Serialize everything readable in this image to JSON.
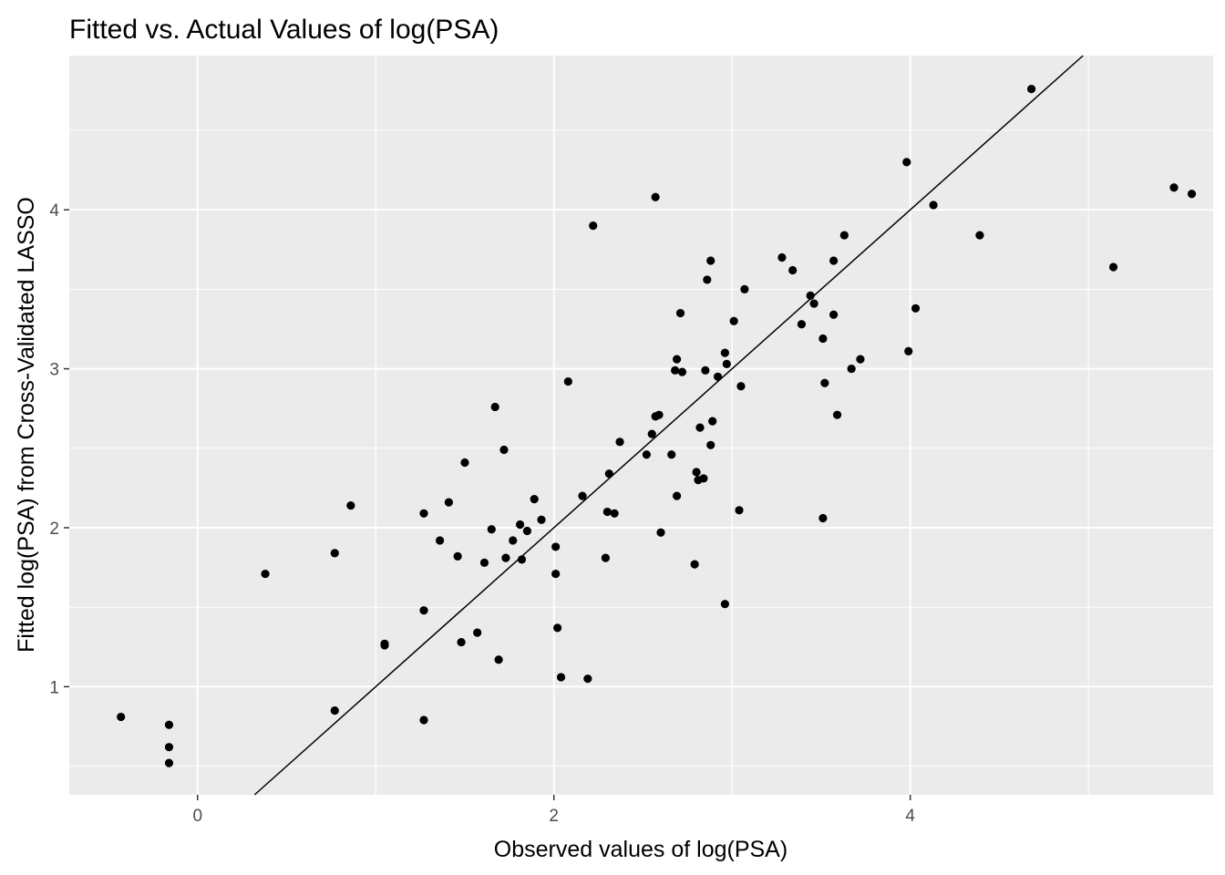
{
  "chart_data": {
    "type": "scatter",
    "title": "Fitted vs. Actual Values of log(PSA)",
    "xlabel": "Observed values of log(PSA)",
    "ylabel": "Fitted log(PSA) from Cross-Validated LASSO",
    "xlim": [
      -0.72,
      5.7
    ],
    "ylim": [
      0.32,
      4.97
    ],
    "x_ticks": [
      0,
      2,
      4
    ],
    "x_tick_labels": [
      "0",
      "2",
      "4"
    ],
    "y_ticks": [
      1,
      2,
      3,
      4
    ],
    "y_tick_labels": [
      "1",
      "2",
      "3",
      "4"
    ],
    "grid": true,
    "reference_line": {
      "type": "identity",
      "slope": 1,
      "intercept": 0
    },
    "colors": {
      "panel": "#ebebeb",
      "grid": "#ffffff",
      "points": "#000000",
      "line": "#000000",
      "tick_text": "#4d4d4d"
    },
    "points": [
      [
        -0.43,
        0.81
      ],
      [
        -0.16,
        0.76
      ],
      [
        -0.16,
        0.62
      ],
      [
        -0.16,
        0.52
      ],
      [
        0.38,
        1.71
      ],
      [
        0.77,
        1.84
      ],
      [
        0.77,
        0.85
      ],
      [
        0.86,
        2.14
      ],
      [
        1.05,
        1.27
      ],
      [
        1.05,
        1.26
      ],
      [
        1.27,
        2.09
      ],
      [
        1.27,
        1.48
      ],
      [
        1.27,
        0.79
      ],
      [
        1.36,
        1.92
      ],
      [
        1.41,
        2.16
      ],
      [
        1.46,
        1.82
      ],
      [
        1.48,
        1.28
      ],
      [
        1.5,
        2.41
      ],
      [
        1.57,
        1.34
      ],
      [
        1.61,
        1.78
      ],
      [
        1.65,
        1.99
      ],
      [
        1.67,
        2.76
      ],
      [
        1.69,
        1.17
      ],
      [
        1.72,
        2.49
      ],
      [
        1.73,
        1.81
      ],
      [
        1.77,
        1.92
      ],
      [
        1.81,
        2.02
      ],
      [
        1.82,
        1.8
      ],
      [
        1.85,
        1.98
      ],
      [
        1.89,
        2.18
      ],
      [
        1.93,
        2.05
      ],
      [
        2.01,
        1.88
      ],
      [
        2.01,
        1.71
      ],
      [
        2.02,
        1.37
      ],
      [
        2.04,
        1.06
      ],
      [
        2.08,
        2.92
      ],
      [
        2.16,
        2.2
      ],
      [
        2.19,
        1.05
      ],
      [
        2.22,
        3.9
      ],
      [
        2.29,
        1.81
      ],
      [
        2.3,
        2.1
      ],
      [
        2.31,
        2.34
      ],
      [
        2.34,
        2.09
      ],
      [
        2.37,
        2.54
      ],
      [
        2.52,
        2.46
      ],
      [
        2.55,
        2.59
      ],
      [
        2.57,
        2.7
      ],
      [
        2.57,
        4.08
      ],
      [
        2.59,
        2.71
      ],
      [
        2.6,
        1.97
      ],
      [
        2.66,
        2.46
      ],
      [
        2.68,
        2.99
      ],
      [
        2.69,
        3.06
      ],
      [
        2.69,
        2.2
      ],
      [
        2.71,
        3.35
      ],
      [
        2.72,
        2.98
      ],
      [
        2.79,
        1.77
      ],
      [
        2.8,
        2.35
      ],
      [
        2.81,
        2.3
      ],
      [
        2.82,
        2.63
      ],
      [
        2.84,
        2.31
      ],
      [
        2.85,
        2.99
      ],
      [
        2.86,
        3.56
      ],
      [
        2.88,
        3.68
      ],
      [
        2.88,
        2.52
      ],
      [
        2.89,
        2.67
      ],
      [
        2.92,
        2.95
      ],
      [
        2.96,
        3.1
      ],
      [
        2.96,
        1.52
      ],
      [
        2.97,
        3.03
      ],
      [
        3.01,
        3.3
      ],
      [
        3.04,
        2.11
      ],
      [
        3.05,
        2.89
      ],
      [
        3.07,
        3.5
      ],
      [
        3.28,
        3.7
      ],
      [
        3.34,
        3.62
      ],
      [
        3.39,
        3.28
      ],
      [
        3.44,
        3.46
      ],
      [
        3.46,
        3.41
      ],
      [
        3.51,
        3.19
      ],
      [
        3.51,
        2.06
      ],
      [
        3.52,
        2.91
      ],
      [
        3.57,
        3.68
      ],
      [
        3.57,
        3.34
      ],
      [
        3.59,
        2.71
      ],
      [
        3.63,
        3.84
      ],
      [
        3.67,
        3.0
      ],
      [
        3.72,
        3.06
      ],
      [
        3.98,
        4.3
      ],
      [
        3.99,
        3.11
      ],
      [
        4.03,
        3.38
      ],
      [
        4.13,
        4.03
      ],
      [
        4.39,
        3.84
      ],
      [
        4.68,
        4.76
      ],
      [
        5.14,
        3.64
      ],
      [
        5.48,
        4.14
      ],
      [
        5.58,
        4.1
      ]
    ]
  }
}
